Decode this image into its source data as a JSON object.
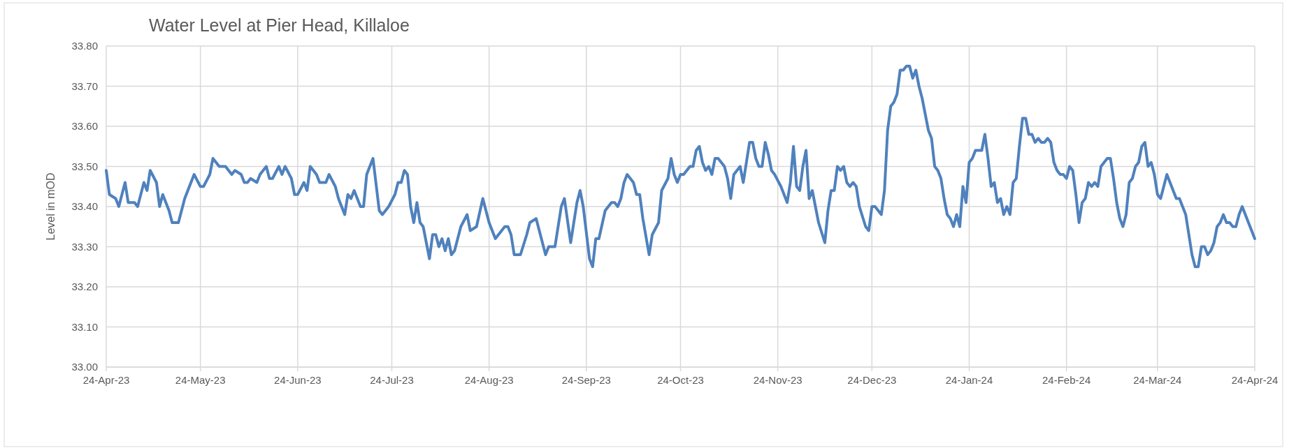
{
  "chart_data": {
    "type": "line",
    "title": "Water Level at Pier Head, Killaloe",
    "ylabel": "Level in mOD",
    "grid": true,
    "marker": "none",
    "line_style": "solid",
    "xlim": [
      "2023-04-24",
      "2024-04-24"
    ],
    "ylim": [
      33,
      33.8
    ],
    "yticks": [
      {
        "value": 33,
        "label": "33.00"
      },
      {
        "value": 33.1,
        "label": "33.10"
      },
      {
        "value": 33.2,
        "label": "33.20"
      },
      {
        "value": 33.3,
        "label": "33.30"
      },
      {
        "value": 33.4,
        "label": "33.40"
      },
      {
        "value": 33.5,
        "label": "33.50"
      },
      {
        "value": 33.6,
        "label": "33.60"
      },
      {
        "value": 33.7,
        "label": "33.70"
      },
      {
        "value": 33.8,
        "label": "33.80"
      }
    ],
    "xticks": [
      {
        "value": "2023-04-24",
        "label": "24-Apr-23"
      },
      {
        "value": "2023-05-24",
        "label": "24-May-23"
      },
      {
        "value": "2023-06-24",
        "label": "24-Jun-23"
      },
      {
        "value": "2023-07-24",
        "label": "24-Jul-23"
      },
      {
        "value": "2023-08-24",
        "label": "24-Aug-23"
      },
      {
        "value": "2023-09-24",
        "label": "24-Sep-23"
      },
      {
        "value": "2023-10-24",
        "label": "24-Oct-23"
      },
      {
        "value": "2023-11-24",
        "label": "24-Nov-23"
      },
      {
        "value": "2023-12-24",
        "label": "24-Dec-23"
      },
      {
        "value": "2024-01-24",
        "label": "24-Jan-24"
      },
      {
        "value": "2024-02-24",
        "label": "24-Feb-24"
      },
      {
        "value": "2024-03-24",
        "label": "24-Mar-24"
      },
      {
        "value": "2024-04-24",
        "label": "24-Apr-24"
      }
    ],
    "x": [
      "2023-04-24",
      "2023-04-25",
      "2023-04-27",
      "2023-04-28",
      "2023-04-30",
      "2023-05-01",
      "2023-05-03",
      "2023-05-04",
      "2023-05-06",
      "2023-05-07",
      "2023-05-08",
      "2023-05-10",
      "2023-05-11",
      "2023-05-12",
      "2023-05-14",
      "2023-05-15",
      "2023-05-17",
      "2023-05-19",
      "2023-05-22",
      "2023-05-24",
      "2023-05-25",
      "2023-05-27",
      "2023-05-28",
      "2023-05-30",
      "2023-06-01",
      "2023-06-03",
      "2023-06-04",
      "2023-06-06",
      "2023-06-07",
      "2023-06-08",
      "2023-06-09",
      "2023-06-11",
      "2023-06-12",
      "2023-06-14",
      "2023-06-15",
      "2023-06-16",
      "2023-06-18",
      "2023-06-19",
      "2023-06-20",
      "2023-06-22",
      "2023-06-23",
      "2023-06-24",
      "2023-06-26",
      "2023-06-27",
      "2023-06-28",
      "2023-06-30",
      "2023-07-01",
      "2023-07-03",
      "2023-07-04",
      "2023-07-06",
      "2023-07-07",
      "2023-07-09",
      "2023-07-10",
      "2023-07-11",
      "2023-07-12",
      "2023-07-14",
      "2023-07-15",
      "2023-07-16",
      "2023-07-18",
      "2023-07-20",
      "2023-07-21",
      "2023-07-23",
      "2023-07-25",
      "2023-07-26",
      "2023-07-27",
      "2023-07-28",
      "2023-07-29",
      "2023-07-30",
      "2023-07-31",
      "2023-08-01",
      "2023-08-02",
      "2023-08-03",
      "2023-08-05",
      "2023-08-06",
      "2023-08-07",
      "2023-08-08",
      "2023-08-09",
      "2023-08-10",
      "2023-08-11",
      "2023-08-12",
      "2023-08-13",
      "2023-08-15",
      "2023-08-17",
      "2023-08-18",
      "2023-08-20",
      "2023-08-22",
      "2023-08-24",
      "2023-08-26",
      "2023-08-27",
      "2023-08-29",
      "2023-08-30",
      "2023-08-31",
      "2023-09-01",
      "2023-09-03",
      "2023-09-05",
      "2023-09-06",
      "2023-09-08",
      "2023-09-09",
      "2023-09-11",
      "2023-09-12",
      "2023-09-14",
      "2023-09-16",
      "2023-09-17",
      "2023-09-19",
      "2023-09-21",
      "2023-09-22",
      "2023-09-23",
      "2023-09-25",
      "2023-09-26",
      "2023-09-27",
      "2023-09-28",
      "2023-09-30",
      "2023-10-02",
      "2023-10-03",
      "2023-10-04",
      "2023-10-05",
      "2023-10-06",
      "2023-10-07",
      "2023-10-09",
      "2023-10-10",
      "2023-10-11",
      "2023-10-12",
      "2023-10-14",
      "2023-10-15",
      "2023-10-17",
      "2023-10-18",
      "2023-10-20",
      "2023-10-21",
      "2023-10-22",
      "2023-10-23",
      "2023-10-24",
      "2023-10-25",
      "2023-10-27",
      "2023-10-28",
      "2023-10-29",
      "2023-10-30",
      "2023-10-31",
      "2023-11-01",
      "2023-11-02",
      "2023-11-03",
      "2023-11-04",
      "2023-11-05",
      "2023-11-06",
      "2023-11-07",
      "2023-11-08",
      "2023-11-09",
      "2023-11-10",
      "2023-11-12",
      "2023-11-13",
      "2023-11-14",
      "2023-11-15",
      "2023-11-16",
      "2023-11-17",
      "2023-11-18",
      "2023-11-19",
      "2023-11-20",
      "2023-11-21",
      "2023-11-22",
      "2023-11-23",
      "2023-11-25",
      "2023-11-27",
      "2023-11-28",
      "2023-11-29",
      "2023-11-30",
      "2023-12-01",
      "2023-12-02",
      "2023-12-03",
      "2023-12-04",
      "2023-12-05",
      "2023-12-07",
      "2023-12-09",
      "2023-12-10",
      "2023-12-11",
      "2023-12-12",
      "2023-12-13",
      "2023-12-14",
      "2023-12-15",
      "2023-12-16",
      "2023-12-17",
      "2023-12-18",
      "2023-12-19",
      "2023-12-20",
      "2023-12-22",
      "2023-12-23",
      "2023-12-24",
      "2023-12-25",
      "2023-12-27",
      "2023-12-28",
      "2023-12-29",
      "2023-12-30",
      "2023-12-31",
      "2024-01-01",
      "2024-01-02",
      "2024-01-03",
      "2024-01-04",
      "2024-01-05",
      "2024-01-06",
      "2024-01-07",
      "2024-01-08",
      "2024-01-09",
      "2024-01-11",
      "2024-01-12",
      "2024-01-13",
      "2024-01-14",
      "2024-01-15",
      "2024-01-16",
      "2024-01-17",
      "2024-01-18",
      "2024-01-19",
      "2024-01-20",
      "2024-01-21",
      "2024-01-22",
      "2024-01-23",
      "2024-01-24",
      "2024-01-25",
      "2024-01-26",
      "2024-01-28",
      "2024-01-29",
      "2024-01-30",
      "2024-01-31",
      "2024-02-01",
      "2024-02-02",
      "2024-02-03",
      "2024-02-04",
      "2024-02-05",
      "2024-02-06",
      "2024-02-07",
      "2024-02-08",
      "2024-02-09",
      "2024-02-10",
      "2024-02-11",
      "2024-02-12",
      "2024-02-13",
      "2024-02-14",
      "2024-02-15",
      "2024-02-16",
      "2024-02-17",
      "2024-02-18",
      "2024-02-19",
      "2024-02-20",
      "2024-02-21",
      "2024-02-22",
      "2024-02-23",
      "2024-02-24",
      "2024-02-25",
      "2024-02-26",
      "2024-02-27",
      "2024-02-28",
      "2024-02-29",
      "2024-03-01",
      "2024-03-02",
      "2024-03-03",
      "2024-03-04",
      "2024-03-05",
      "2024-03-06",
      "2024-03-07",
      "2024-03-08",
      "2024-03-09",
      "2024-03-10",
      "2024-03-11",
      "2024-03-12",
      "2024-03-13",
      "2024-03-14",
      "2024-03-15",
      "2024-03-16",
      "2024-03-17",
      "2024-03-18",
      "2024-03-19",
      "2024-03-20",
      "2024-03-21",
      "2024-03-22",
      "2024-03-23",
      "2024-03-24",
      "2024-03-25",
      "2024-03-26",
      "2024-03-27",
      "2024-03-28",
      "2024-03-29",
      "2024-03-30",
      "2024-03-31",
      "2024-04-01",
      "2024-04-02",
      "2024-04-03",
      "2024-04-04",
      "2024-04-05",
      "2024-04-06",
      "2024-04-07",
      "2024-04-08",
      "2024-04-09",
      "2024-04-10",
      "2024-04-11",
      "2024-04-12",
      "2024-04-13",
      "2024-04-14",
      "2024-04-15",
      "2024-04-16",
      "2024-04-17",
      "2024-04-18",
      "2024-04-19",
      "2024-04-20",
      "2024-04-22",
      "2024-04-24"
    ],
    "series": [
      {
        "color": "#4f81bd",
        "values": [
          33.49,
          33.43,
          33.42,
          33.4,
          33.46,
          33.41,
          33.41,
          33.4,
          33.46,
          33.44,
          33.49,
          33.46,
          33.4,
          33.43,
          33.39,
          33.36,
          33.36,
          33.42,
          33.48,
          33.45,
          33.45,
          33.48,
          33.52,
          33.5,
          33.5,
          33.48,
          33.49,
          33.48,
          33.46,
          33.46,
          33.47,
          33.46,
          33.48,
          33.5,
          33.47,
          33.47,
          33.5,
          33.48,
          33.5,
          33.47,
          33.43,
          33.43,
          33.46,
          33.44,
          33.5,
          33.48,
          33.46,
          33.46,
          33.48,
          33.45,
          33.42,
          33.38,
          33.43,
          33.42,
          33.44,
          33.4,
          33.4,
          33.48,
          33.52,
          33.39,
          33.38,
          33.4,
          33.43,
          33.46,
          33.46,
          33.49,
          33.48,
          33.4,
          33.36,
          33.41,
          33.36,
          33.35,
          33.27,
          33.33,
          33.33,
          33.3,
          33.32,
          33.29,
          33.32,
          33.28,
          33.29,
          33.35,
          33.38,
          33.34,
          33.35,
          33.42,
          33.36,
          33.32,
          33.33,
          33.35,
          33.35,
          33.33,
          33.28,
          33.28,
          33.33,
          33.36,
          33.37,
          33.34,
          33.28,
          33.3,
          33.3,
          33.4,
          33.42,
          33.31,
          33.41,
          33.44,
          33.4,
          33.27,
          33.25,
          33.32,
          33.32,
          33.39,
          33.41,
          33.41,
          33.4,
          33.42,
          33.46,
          33.48,
          33.46,
          33.43,
          33.43,
          33.37,
          33.28,
          33.33,
          33.36,
          33.44,
          33.47,
          33.52,
          33.48,
          33.46,
          33.48,
          33.48,
          33.5,
          33.5,
          33.54,
          33.55,
          33.51,
          33.49,
          33.5,
          33.48,
          33.52,
          33.52,
          33.51,
          33.5,
          33.47,
          33.42,
          33.48,
          33.5,
          33.46,
          33.51,
          33.56,
          33.56,
          33.52,
          33.5,
          33.5,
          33.56,
          33.53,
          33.49,
          33.48,
          33.45,
          33.41,
          33.46,
          33.55,
          33.45,
          33.44,
          33.5,
          33.54,
          33.42,
          33.44,
          33.36,
          33.31,
          33.39,
          33.44,
          33.44,
          33.5,
          33.49,
          33.5,
          33.46,
          33.45,
          33.46,
          33.45,
          33.4,
          33.35,
          33.34,
          33.4,
          33.4,
          33.38,
          33.44,
          33.59,
          33.65,
          33.66,
          33.68,
          33.74,
          33.74,
          33.75,
          33.75,
          33.72,
          33.74,
          33.7,
          33.67,
          33.59,
          33.57,
          33.5,
          33.49,
          33.47,
          33.42,
          33.38,
          33.37,
          33.35,
          33.38,
          33.35,
          33.45,
          33.41,
          33.51,
          33.52,
          33.54,
          33.54,
          33.58,
          33.52,
          33.45,
          33.46,
          33.41,
          33.42,
          33.38,
          33.4,
          33.38,
          33.46,
          33.47,
          33.55,
          33.62,
          33.62,
          33.58,
          33.58,
          33.56,
          33.57,
          33.56,
          33.56,
          33.57,
          33.56,
          33.51,
          33.49,
          33.48,
          33.48,
          33.47,
          33.5,
          33.49,
          33.43,
          33.36,
          33.41,
          33.42,
          33.46,
          33.45,
          33.46,
          33.45,
          33.5,
          33.51,
          33.52,
          33.52,
          33.47,
          33.41,
          33.37,
          33.35,
          33.38,
          33.46,
          33.47,
          33.5,
          33.51,
          33.55,
          33.56,
          33.5,
          33.51,
          33.48,
          33.43,
          33.42,
          33.45,
          33.48,
          33.46,
          33.44,
          33.42,
          33.42,
          33.4,
          33.38,
          33.33,
          33.28,
          33.25,
          33.25,
          33.3,
          33.3,
          33.28,
          33.29,
          33.31,
          33.35,
          33.36,
          33.38,
          33.36,
          33.36,
          33.35,
          33.35,
          33.38,
          33.4,
          33.36,
          33.32
        ]
      }
    ]
  }
}
